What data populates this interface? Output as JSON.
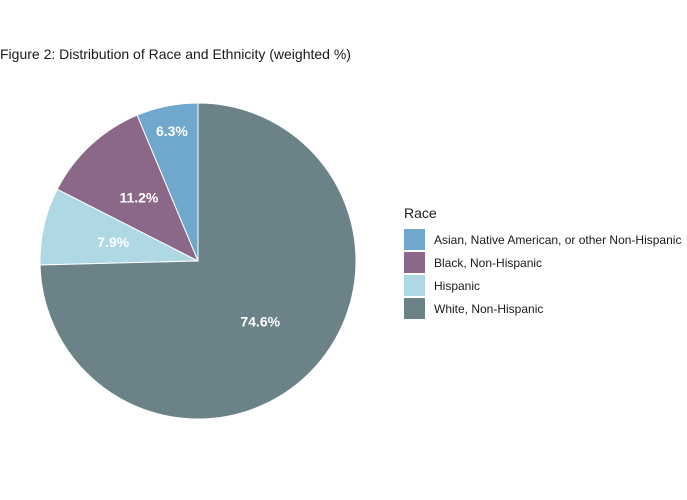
{
  "chart_data": {
    "type": "pie",
    "title": "Figure 2: Distribution of Race and Ethnicity (weighted %)",
    "legend_title": "Race",
    "legend_position": "right",
    "direction": "counterclockwise from top",
    "slices": [
      {
        "name": "Asian, Native American, or other Non-Hispanic",
        "value": 6.3,
        "label": "6.3%",
        "color": "#6FA8CC"
      },
      {
        "name": "Black, Non-Hispanic",
        "value": 11.2,
        "label": "11.2%",
        "color": "#8B6887"
      },
      {
        "name": "Hispanic",
        "value": 7.9,
        "label": "7.9%",
        "color": "#ADD8E4"
      },
      {
        "name": "White, Non-Hispanic",
        "value": 74.6,
        "label": "74.6%",
        "color": "#6B8289"
      }
    ]
  }
}
